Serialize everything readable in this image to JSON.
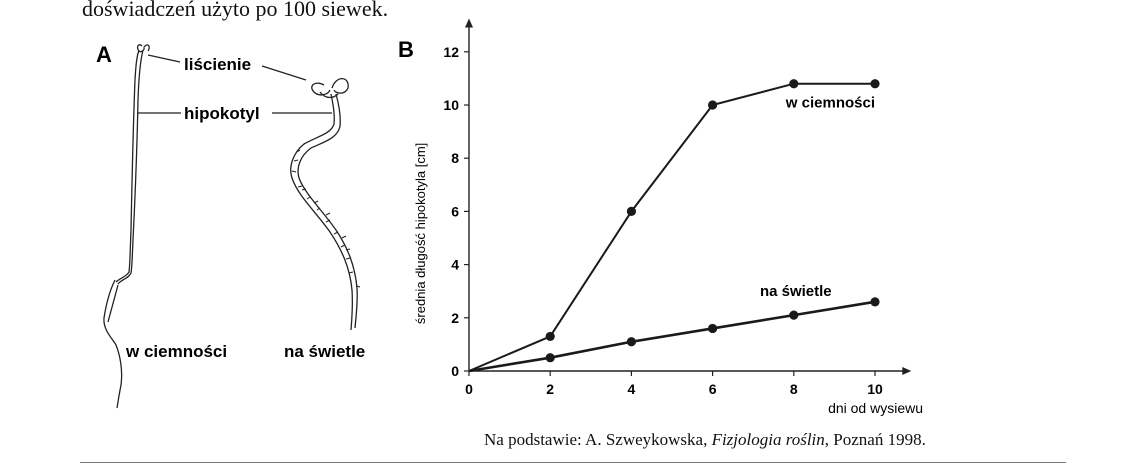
{
  "intro_text": "doświadczeń użyto po 100 siewek.",
  "panel_a": {
    "letter": "A",
    "label_cotyledons": "liścienie",
    "label_hypocotyl": "hipokotyl",
    "caption_dark": "w ciemności",
    "caption_light": "na świetle"
  },
  "source": {
    "prefix": "Na podstawie: A. Szweykowska, ",
    "title": "Fizjologia roślin",
    "suffix": ", Poznań 1998."
  },
  "chart_data": {
    "type": "line",
    "panel_letter": "B",
    "xlabel": "dni od wysiewu",
    "ylabel": "średnia długość hipokotyla [cm]",
    "xlim": [
      0,
      10.5
    ],
    "ylim": [
      0,
      12.5
    ],
    "x_ticks": [
      0,
      2,
      4,
      6,
      8,
      10
    ],
    "x_tick_labels": [
      "0",
      "2",
      "4",
      "6",
      "8",
      "10"
    ],
    "y_ticks": [
      0,
      2,
      4,
      6,
      8,
      10,
      12
    ],
    "y_tick_labels": [
      "0",
      "2",
      "4",
      "6",
      "8",
      "10",
      "12"
    ],
    "grid": false,
    "series": [
      {
        "name": "w ciemności",
        "color": "#1a1a1a",
        "x": [
          0,
          2,
          4,
          6,
          8,
          10
        ],
        "y": [
          0,
          1.3,
          6.0,
          10.0,
          10.8,
          10.8
        ]
      },
      {
        "name": "na świetle",
        "color": "#1a1a1a",
        "x": [
          0,
          2,
          4,
          6,
          8,
          10
        ],
        "y": [
          0,
          0.5,
          1.1,
          1.6,
          2.1,
          2.6
        ]
      }
    ]
  }
}
